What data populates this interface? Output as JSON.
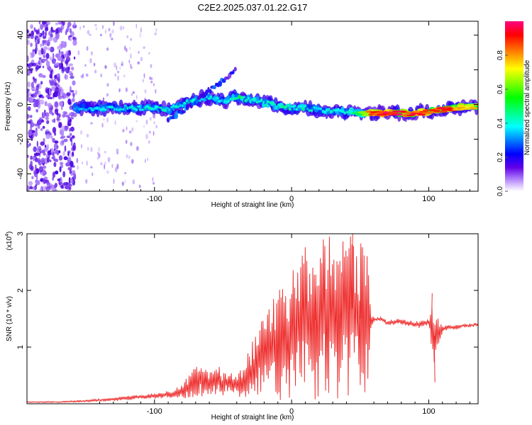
{
  "figure": {
    "title": "C2E2.2025.037.01.22.G17"
  },
  "chart_data": [
    {
      "type": "heatmap",
      "xlabel": "Height of straight line (km)",
      "ylabel": "Frequency (Hz)",
      "xlim": [
        -193,
        136
      ],
      "ylim": [
        -50,
        48
      ],
      "xticks": [
        -100,
        0,
        100
      ],
      "yticks": [
        -40,
        -20,
        0,
        20,
        40
      ],
      "colorbar": {
        "label": "Normalized spectral amplitude",
        "range": [
          0.0,
          1.0
        ],
        "ticks": [
          0.0,
          0.2,
          0.4,
          0.6,
          0.8
        ],
        "colormap": [
          "#ffffff",
          "#b890ff",
          "#5000e0",
          "#0000ff",
          "#00ffff",
          "#00ff00",
          "#ffff00",
          "#ff8000",
          "#ff0000",
          "#ff0080"
        ]
      },
      "ridge": {
        "x": [
          -158,
          -140,
          -120,
          -100,
          -90,
          -80,
          -70,
          -60,
          -50,
          -40,
          -30,
          -20,
          -10,
          0,
          10,
          20,
          30,
          40,
          50,
          60,
          70,
          80,
          90,
          100,
          110,
          120,
          130,
          136
        ],
        "freq": [
          -2,
          -2,
          -2,
          -2,
          -3,
          0,
          3,
          4,
          2,
          4,
          3,
          1,
          -1,
          -2,
          -2,
          -3,
          -4,
          -4,
          -5,
          -5,
          -5,
          -5,
          -5,
          -4,
          -3,
          -2,
          -1,
          -1
        ],
        "amplitude": [
          0.35,
          0.4,
          0.4,
          0.45,
          0.4,
          0.42,
          0.45,
          0.4,
          0.4,
          0.5,
          0.45,
          0.45,
          0.45,
          0.45,
          0.45,
          0.42,
          0.42,
          0.45,
          0.55,
          0.95,
          1.0,
          0.98,
          0.95,
          0.9,
          0.95,
          0.9,
          0.8,
          0.75
        ]
      },
      "branch": {
        "x": [
          -90,
          -80,
          -70,
          -60,
          -50,
          -40
        ],
        "freq": [
          -8,
          -4,
          2,
          8,
          14,
          20
        ],
        "amplitude": [
          0.3,
          0.35,
          0.35,
          0.3,
          0.3,
          0.2
        ]
      },
      "noise_region_x": [
        -193,
        -158
      ]
    },
    {
      "type": "line",
      "xlabel": "Height of straight line (km)",
      "ylabel": "SNR (10 * v/v)",
      "y_multiplier": "(x10",
      "y_multiplier_exp": "4",
      "y_multiplier_close": ")",
      "xlim": [
        -193,
        136
      ],
      "ylim": [
        0,
        3.0
      ],
      "xticks": [
        -100,
        0,
        100
      ],
      "yticks": [
        1,
        2,
        3
      ],
      "color": "#ee3030",
      "series": [
        {
          "x": [
            -193,
            -170,
            -150,
            -130,
            -110,
            -100,
            -90,
            -80,
            -75,
            -70,
            -65,
            -60,
            -55,
            -50,
            -45,
            -40,
            -35,
            -30,
            -25,
            -20,
            -15,
            -10,
            -5,
            0,
            5,
            10,
            15,
            20,
            25,
            30,
            35,
            40,
            45,
            50,
            55,
            58,
            60,
            65,
            70,
            75,
            80,
            85,
            90,
            95,
            100,
            102,
            104,
            106,
            110,
            115,
            120,
            125,
            130,
            136
          ],
          "y": [
            0.03,
            0.03,
            0.05,
            0.08,
            0.12,
            0.14,
            0.16,
            0.22,
            0.3,
            0.4,
            0.42,
            0.38,
            0.45,
            0.35,
            0.4,
            0.3,
            0.4,
            0.55,
            0.75,
            0.85,
            0.95,
            1.05,
            1.1,
            1.2,
            1.35,
            1.45,
            1.45,
            1.5,
            1.55,
            1.6,
            1.5,
            1.6,
            1.7,
            1.5,
            1.4,
            1.45,
            1.48,
            1.5,
            1.42,
            1.45,
            1.45,
            1.42,
            1.4,
            1.4,
            1.45,
            1.3,
            1.2,
            1.3,
            1.32,
            1.35,
            1.35,
            1.38,
            1.38,
            1.4
          ],
          "spread": [
            0.01,
            0.01,
            0.02,
            0.03,
            0.04,
            0.05,
            0.06,
            0.1,
            0.25,
            0.3,
            0.3,
            0.25,
            0.3,
            0.2,
            0.15,
            0.2,
            0.3,
            0.45,
            0.6,
            0.7,
            0.9,
            1.0,
            1.05,
            1.1,
            1.2,
            1.35,
            1.4,
            1.45,
            1.5,
            1.45,
            1.5,
            1.5,
            1.45,
            1.35,
            1.3,
            0.15,
            0.05,
            0.04,
            0.04,
            0.05,
            0.05,
            0.05,
            0.06,
            0.06,
            0.06,
            0.35,
            0.9,
            0.35,
            0.06,
            0.04,
            0.04,
            0.03,
            0.03,
            0.03
          ]
        }
      ],
      "spikes": [
        {
          "x": 17,
          "y": 2.07
        },
        {
          "x": 36,
          "y": 2.32
        },
        {
          "x": 44,
          "y": 3.0
        },
        {
          "x": 50,
          "y": 2.83
        },
        {
          "x": 104,
          "y": 0.38
        },
        {
          "x": 102,
          "y": 1.95
        }
      ]
    }
  ]
}
